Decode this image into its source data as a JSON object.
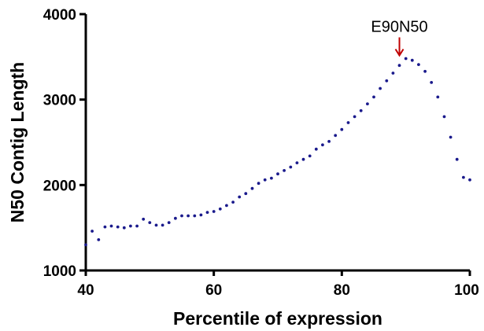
{
  "chart_data": {
    "type": "scatter",
    "title": "",
    "xlabel": "Percentile of expression",
    "ylabel": "N50 Contig Length",
    "xlim": [
      40,
      100
    ],
    "ylim": [
      1000,
      4000
    ],
    "x_ticks": [
      "40",
      "60",
      "80",
      "100"
    ],
    "y_ticks": [
      "1000",
      "2000",
      "3000",
      "4000"
    ],
    "grid": false,
    "marker_color": "#1a1a8c",
    "annotation": {
      "text": "E90N50",
      "x": 89,
      "y": 3480,
      "arrow_color": "#c00000"
    },
    "series": [
      {
        "x": [
          40,
          41,
          42,
          43,
          44,
          45,
          46,
          47,
          48,
          49,
          50,
          51,
          52,
          53,
          54,
          55,
          56,
          57,
          58,
          59,
          60,
          61,
          62,
          63,
          64,
          65,
          66,
          67,
          68,
          69,
          70,
          71,
          72,
          73,
          74,
          75,
          76,
          77,
          78,
          79,
          80,
          81,
          82,
          83,
          84,
          85,
          86,
          87,
          88,
          89,
          90,
          91,
          92,
          93,
          94,
          95,
          96,
          97,
          98,
          99,
          100
        ],
        "y": [
          1300,
          1460,
          1360,
          1510,
          1520,
          1510,
          1500,
          1520,
          1520,
          1600,
          1560,
          1530,
          1530,
          1560,
          1610,
          1640,
          1640,
          1640,
          1650,
          1680,
          1690,
          1720,
          1760,
          1800,
          1860,
          1900,
          1960,
          2020,
          2060,
          2080,
          2130,
          2170,
          2210,
          2260,
          2300,
          2340,
          2420,
          2470,
          2510,
          2580,
          2650,
          2730,
          2800,
          2870,
          2950,
          3030,
          3130,
          3220,
          3310,
          3400,
          3480,
          3460,
          3410,
          3330,
          3200,
          3030,
          2800,
          2560,
          2300,
          2090,
          2060
        ]
      }
    ]
  }
}
